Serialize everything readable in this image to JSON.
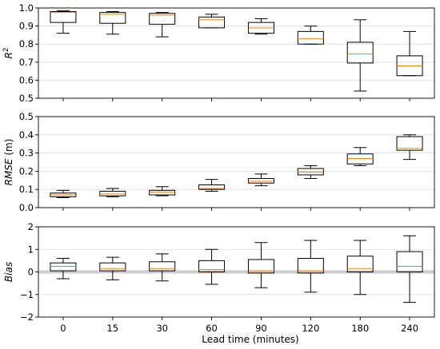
{
  "chart_data": {
    "type": "box",
    "categories": [
      "0",
      "15",
      "30",
      "60",
      "90",
      "120",
      "180",
      "240"
    ],
    "xlabel": "Lead time (minutes)",
    "colors": {
      "box": "#000000",
      "median": "#ff7f0e",
      "grid": "#d9d9d9",
      "zero_band": "#cccccc"
    },
    "grid": true,
    "panels": [
      {
        "ylabel": "R²",
        "ylim": [
          0.5,
          1.0
        ],
        "yticks": [
          0.5,
          0.6,
          0.7,
          0.8,
          0.9,
          1.0
        ],
        "ytick_labels": [
          "0.5",
          "0.6",
          "0.7",
          "0.8",
          "0.9",
          "1.0"
        ],
        "zero_band": false,
        "boxes": [
          {
            "whislo": 0.86,
            "q1": 0.92,
            "med": 0.975,
            "q3": 0.98,
            "whishi": 0.985
          },
          {
            "whislo": 0.855,
            "q1": 0.915,
            "med": 0.965,
            "q3": 0.975,
            "whishi": 0.98
          },
          {
            "whislo": 0.84,
            "q1": 0.91,
            "med": 0.96,
            "q3": 0.97,
            "whishi": 0.975
          },
          {
            "whislo": 0.89,
            "q1": 0.89,
            "med": 0.935,
            "q3": 0.95,
            "whishi": 0.965
          },
          {
            "whislo": 0.855,
            "q1": 0.86,
            "med": 0.89,
            "q3": 0.92,
            "whishi": 0.94
          },
          {
            "whislo": 0.8,
            "q1": 0.8,
            "med": 0.83,
            "q3": 0.87,
            "whishi": 0.9
          },
          {
            "whislo": 0.54,
            "q1": 0.695,
            "med": 0.745,
            "q3": 0.81,
            "whishi": 0.935
          },
          {
            "whislo": 0.625,
            "q1": 0.625,
            "med": 0.68,
            "q3": 0.735,
            "whishi": 0.87
          }
        ]
      },
      {
        "ylabel": "RMSE",
        "ylabel_unit": "(m)",
        "ylim": [
          0.0,
          0.5
        ],
        "yticks": [
          0.0,
          0.1,
          0.2,
          0.3,
          0.4,
          0.5
        ],
        "ytick_labels": [
          "0.0",
          "0.1",
          "0.2",
          "0.3",
          "0.4",
          "0.5"
        ],
        "zero_band": false,
        "boxes": [
          {
            "whislo": 0.055,
            "q1": 0.06,
            "med": 0.07,
            "q3": 0.08,
            "whishi": 0.095
          },
          {
            "whislo": 0.06,
            "q1": 0.065,
            "med": 0.075,
            "q3": 0.09,
            "whishi": 0.105
          },
          {
            "whislo": 0.065,
            "q1": 0.07,
            "med": 0.085,
            "q3": 0.095,
            "whishi": 0.115
          },
          {
            "whislo": 0.09,
            "q1": 0.1,
            "med": 0.105,
            "q3": 0.125,
            "whishi": 0.155
          },
          {
            "whislo": 0.12,
            "q1": 0.135,
            "med": 0.145,
            "q3": 0.16,
            "whishi": 0.185
          },
          {
            "whislo": 0.16,
            "q1": 0.18,
            "med": 0.195,
            "q3": 0.215,
            "whishi": 0.23
          },
          {
            "whislo": 0.23,
            "q1": 0.24,
            "med": 0.27,
            "q3": 0.295,
            "whishi": 0.33
          },
          {
            "whislo": 0.265,
            "q1": 0.315,
            "med": 0.325,
            "q3": 0.39,
            "whishi": 0.4
          }
        ]
      },
      {
        "ylabel": "Bias",
        "ylim": [
          -2,
          2
        ],
        "yticks": [
          -2,
          -1,
          0,
          1,
          2
        ],
        "ytick_labels": [
          "−2",
          "−1",
          "0",
          "1",
          "2"
        ],
        "zero_band": true,
        "boxes": [
          {
            "whislo": -0.3,
            "q1": 0.05,
            "med": 0.25,
            "q3": 0.4,
            "whishi": 0.6
          },
          {
            "whislo": -0.35,
            "q1": 0.05,
            "med": 0.15,
            "q3": 0.4,
            "whishi": 0.65
          },
          {
            "whislo": -0.4,
            "q1": 0.05,
            "med": 0.15,
            "q3": 0.45,
            "whishi": 0.8
          },
          {
            "whislo": -0.55,
            "q1": 0.0,
            "med": 0.1,
            "q3": 0.5,
            "whishi": 1.0
          },
          {
            "whislo": -0.7,
            "q1": -0.05,
            "med": 0.05,
            "q3": 0.55,
            "whishi": 1.3
          },
          {
            "whislo": -0.9,
            "q1": -0.05,
            "med": 0.05,
            "q3": 0.6,
            "whishi": 1.4
          },
          {
            "whislo": -1.0,
            "q1": 0.0,
            "med": 0.15,
            "q3": 0.7,
            "whishi": 1.4
          },
          {
            "whislo": -1.35,
            "q1": 0.0,
            "med": 0.25,
            "q3": 0.9,
            "whishi": 1.6
          }
        ]
      }
    ]
  }
}
